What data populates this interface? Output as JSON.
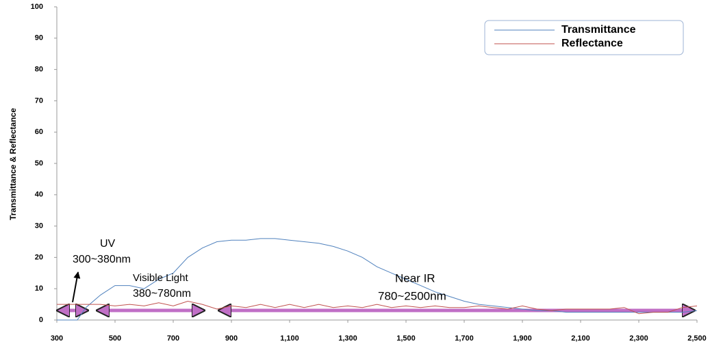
{
  "chart_data": {
    "type": "line",
    "y_label": "Transmittance & Reflectance",
    "x": [
      300,
      350,
      370,
      400,
      450,
      500,
      550,
      600,
      650,
      700,
      750,
      800,
      850,
      900,
      950,
      1000,
      1050,
      1100,
      1150,
      1200,
      1250,
      1300,
      1350,
      1400,
      1450,
      1500,
      1550,
      1600,
      1650,
      1700,
      1750,
      1800,
      1850,
      1900,
      1950,
      2000,
      2050,
      2100,
      2150,
      2200,
      2250,
      2300,
      2350,
      2400,
      2450,
      2500
    ],
    "series": [
      {
        "name": "Transmittance",
        "color": "#4f81bd",
        "values": [
          0,
          0,
          0,
          4,
          8,
          11,
          11,
          10,
          13,
          15,
          20,
          23,
          25,
          25.5,
          25.5,
          26,
          26,
          25.5,
          25,
          24.5,
          23.5,
          22,
          20,
          17,
          15,
          13,
          11,
          9,
          7.5,
          6,
          5,
          4.5,
          4,
          3.5,
          3,
          3,
          2.5,
          2.5,
          2.5,
          2.5,
          2.5,
          2.5,
          2.5,
          2.5,
          2.5,
          3
        ]
      },
      {
        "name": "Reflectance",
        "color": "#c0504d",
        "values": [
          5,
          5,
          5,
          5,
          5,
          4.5,
          5,
          4.5,
          5.5,
          4.5,
          6,
          5,
          3.5,
          4.5,
          4,
          5,
          4,
          5,
          4,
          5,
          4,
          4.5,
          4,
          5,
          4,
          4.5,
          4,
          4.5,
          4,
          4,
          4.5,
          4,
          3.5,
          4.5,
          3.5,
          3,
          3.5,
          3.5,
          3.5,
          3.5,
          4,
          2,
          2.5,
          2.5,
          4,
          4.5
        ]
      }
    ],
    "xlim": [
      300,
      2500
    ],
    "xticks": [
      300,
      500,
      700,
      900,
      {
        "value": 1100,
        "label": "1,100"
      },
      {
        "value": 1300,
        "label": "1,300"
      },
      {
        "value": 1500,
        "label": "1,500"
      },
      {
        "value": 1700,
        "label": "1,700"
      },
      {
        "value": 1900,
        "label": "1,900"
      },
      {
        "value": 2100,
        "label": "2,100"
      },
      {
        "value": 2300,
        "label": "2,300"
      },
      {
        "value": 2500,
        "label": "2,500"
      }
    ],
    "ylim": [
      0,
      100
    ],
    "yticks": [
      0,
      10,
      20,
      30,
      40,
      50,
      60,
      70,
      80,
      90,
      100
    ],
    "legend": "upper right",
    "annotations": [
      "UV",
      "300~380nm",
      "Visible Light",
      "380~780nm",
      "Near IR",
      "780~2500nm"
    ]
  }
}
